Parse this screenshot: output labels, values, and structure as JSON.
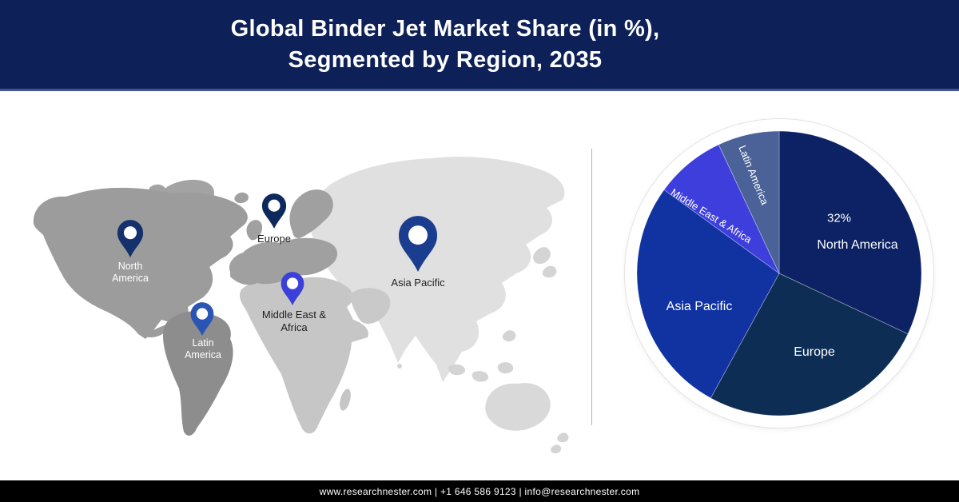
{
  "header": {
    "title_lines": [
      "Global Binder Jet Market Share (in %),",
      "Segmented by Region, 2035"
    ],
    "bg_color": "#0d2158",
    "accent_line_color": "#44548c",
    "text_color": "#ffffff"
  },
  "map": {
    "region_colors": {
      "north_america": "#9c9c9c",
      "greenland": "#a3a3a3",
      "south_america": "#8d8d8d",
      "europe": "#a0a0a0",
      "africa_middle_east": "#c6c6c6",
      "arabia": "#c9c9c9",
      "asia": "#e0e0e0",
      "australia": "#d9d9d9",
      "islands": "#d4d4d4"
    },
    "pins": [
      {
        "region": "North America",
        "label_lines": [
          "North",
          "America"
        ],
        "pin_color": "#15316b",
        "label_color": "#ffffff"
      },
      {
        "region": "Europe",
        "label_lines": [
          "Europe"
        ],
        "pin_color": "#0e2a5c",
        "label_color": "#1e1e1e"
      },
      {
        "region": "Latin America",
        "label_lines": [
          "Latin",
          "America"
        ],
        "pin_color": "#2a55b5",
        "label_color": "#ffffff"
      },
      {
        "region": "Middle East & Africa",
        "label_lines": [
          "Middle East &",
          "Africa"
        ],
        "pin_color": "#3c40da",
        "label_color": "#1e1e1e"
      },
      {
        "region": "Asia Pacific",
        "label_lines": [
          "Asia Pacific"
        ],
        "pin_color": "#1b3d8f",
        "label_color": "#1e1e1e"
      }
    ]
  },
  "chart_data": {
    "type": "pie",
    "title": "Global Binder Jet Market Share (in %), Segmented by Region, 2035",
    "start_angle_deg": 0,
    "direction": "clockwise",
    "legend_position": "none",
    "labels_on_slices": true,
    "ring_color": "#ffffff",
    "slices": [
      {
        "label": "North America",
        "value": 32,
        "data_label": "32%",
        "color": "#0c2264"
      },
      {
        "label": "Europe",
        "value": 26,
        "color": "#0e2d55"
      },
      {
        "label": "Asia Pacific",
        "value": 27,
        "color": "#1133a2"
      },
      {
        "label": "Middle East & Africa",
        "value": 8,
        "color": "#3e3edd"
      },
      {
        "label": "Latin America",
        "value": 7,
        "color": "#4a6298"
      }
    ]
  },
  "footer": {
    "text": "www.researchnester.com | +1 646 586 9123 | info@researchnester.com",
    "bg_color": "#000000",
    "text_color": "#ffffff"
  }
}
